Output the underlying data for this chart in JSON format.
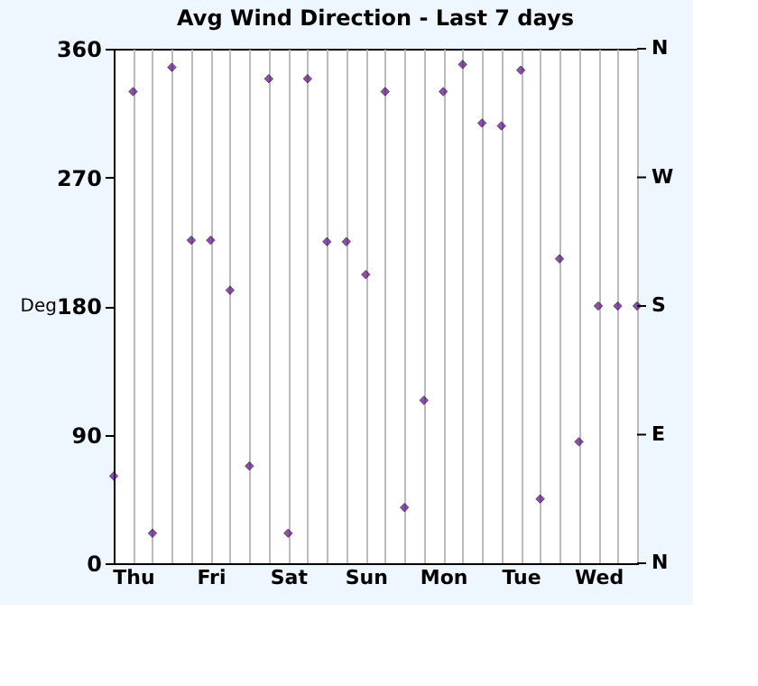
{
  "chart_data": {
    "type": "scatter",
    "title": "Avg Wind Direction - Last 7 days",
    "ylabel": "Deg",
    "categories": [
      null,
      "Thu",
      null,
      null,
      null,
      "Fri",
      null,
      null,
      null,
      "Sat",
      null,
      null,
      null,
      "Sun",
      null,
      null,
      null,
      "Mon",
      null,
      null,
      null,
      "Tue",
      null,
      null,
      null,
      "Wed",
      null,
      null
    ],
    "series": [
      {
        "color": "#660099",
        "values": [
          61,
          330,
          21,
          347,
          226,
          226,
          191,
          68,
          339,
          21,
          339,
          225,
          225,
          202,
          330,
          39,
          114,
          330,
          349,
          308,
          306,
          345,
          45,
          213,
          85,
          180,
          180,
          180
        ]
      }
    ],
    "ylim": [
      0,
      360
    ],
    "yticks": [
      0,
      90,
      180,
      270,
      360
    ],
    "annotations": [
      "N",
      "W",
      "S",
      "E",
      "N"
    ],
    "grid": "x",
    "marker": "diamond"
  }
}
